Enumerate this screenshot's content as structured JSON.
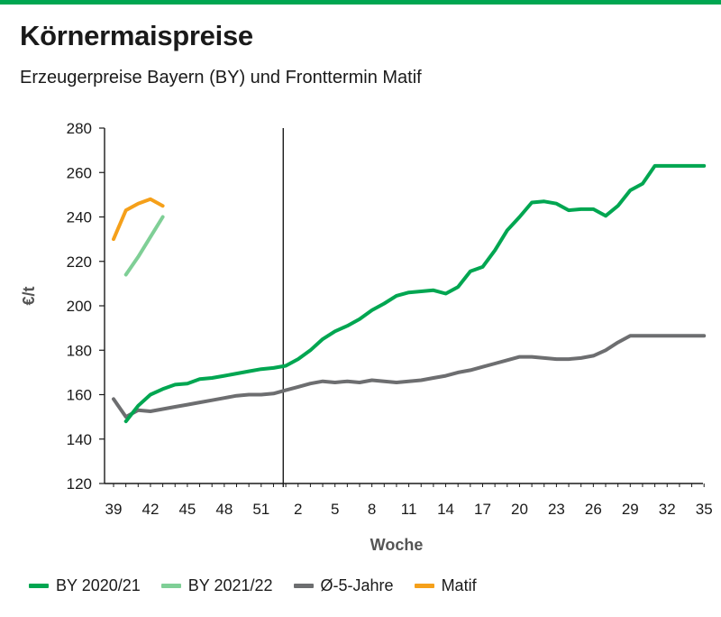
{
  "header": {
    "title": "Körnermaispreise",
    "subtitle": "Erzeugerpreise Bayern (BY) und Fronttermin Matif",
    "accent_color": "#00a651"
  },
  "chart_data": {
    "type": "line",
    "xlabel": "Woche",
    "ylabel": "€/t",
    "ylim": [
      120,
      280
    ],
    "yticks": [
      120,
      140,
      160,
      180,
      200,
      220,
      240,
      260,
      280
    ],
    "week_order": [
      39,
      40,
      41,
      42,
      43,
      44,
      45,
      46,
      47,
      48,
      49,
      50,
      51,
      52,
      1,
      2,
      3,
      4,
      5,
      6,
      7,
      8,
      9,
      10,
      11,
      12,
      13,
      14,
      15,
      16,
      17,
      18,
      19,
      20,
      21,
      22,
      23,
      24,
      25,
      26,
      27,
      28,
      29,
      30,
      31,
      32,
      33,
      34,
      35
    ],
    "xticks": [
      "39",
      "42",
      "45",
      "48",
      "51",
      "2",
      "5",
      "8",
      "11",
      "14",
      "17",
      "20",
      "23",
      "26",
      "29",
      "32",
      "35"
    ],
    "year_boundary_after_week": 52,
    "grid": false,
    "legend_position": "bottom",
    "series": [
      {
        "name": "BY 2020/21",
        "color": "#00a651",
        "x": [
          40,
          41,
          42,
          43,
          44,
          45,
          46,
          47,
          48,
          49,
          50,
          51,
          52,
          1,
          2,
          3,
          4,
          5,
          6,
          7,
          8,
          9,
          10,
          11,
          12,
          13,
          14,
          15,
          16,
          17,
          18,
          19,
          20,
          21,
          22,
          23,
          24,
          25,
          26,
          27,
          28,
          29,
          30,
          31,
          32,
          33,
          34,
          35
        ],
        "y": [
          148,
          155,
          160,
          162.5,
          164.5,
          165,
          167,
          167.5,
          168.5,
          169.5,
          170.5,
          171.5,
          172,
          173,
          176,
          180,
          185,
          188.5,
          191,
          194,
          198,
          201,
          204.5,
          206,
          206.5,
          207,
          205.5,
          208.5,
          215.5,
          217.5,
          225,
          234,
          240,
          246.5,
          247,
          246,
          243,
          243.5,
          243.5,
          240.5,
          245,
          252,
          255,
          263,
          263,
          263,
          263,
          263
        ]
      },
      {
        "name": "BY 2021/22",
        "color": "#7fcf96",
        "x": [
          40,
          41,
          42,
          43
        ],
        "y": [
          214,
          222,
          231,
          240
        ]
      },
      {
        "name": "Ø-5-Jahre",
        "color": "#6d6e70",
        "x": [
          39,
          40,
          41,
          42,
          43,
          44,
          45,
          46,
          47,
          48,
          49,
          50,
          51,
          52,
          1,
          2,
          3,
          4,
          5,
          6,
          7,
          8,
          9,
          10,
          11,
          12,
          13,
          14,
          15,
          16,
          17,
          18,
          19,
          20,
          21,
          22,
          23,
          24,
          25,
          26,
          27,
          28,
          29,
          30,
          31,
          32,
          33,
          34,
          35
        ],
        "y": [
          158,
          150,
          153,
          152.5,
          153.5,
          154.5,
          155.5,
          156.5,
          157.5,
          158.5,
          159.5,
          160,
          160,
          160.5,
          162,
          163.5,
          165,
          166,
          165.5,
          166,
          165.5,
          166.5,
          166,
          165.5,
          166,
          166.5,
          167.5,
          168.5,
          170,
          171,
          172.5,
          174,
          175.5,
          177,
          177,
          176.5,
          176,
          176,
          176.5,
          177.5,
          180,
          183.5,
          186.5,
          186.5,
          186.5,
          186.5,
          186.5,
          186.5,
          186.5
        ]
      },
      {
        "name": "Matif",
        "color": "#f5a01a",
        "x": [
          39,
          40,
          41,
          42,
          43
        ],
        "y": [
          230,
          243,
          246,
          248,
          245
        ]
      }
    ]
  }
}
